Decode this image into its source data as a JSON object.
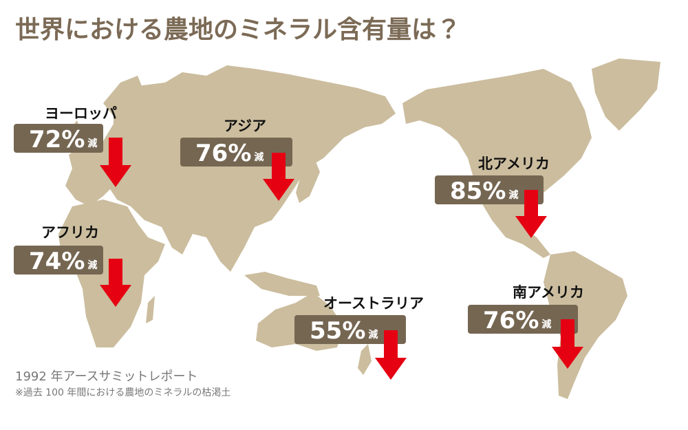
{
  "header": {
    "title": "世界における農地のミネラル含有量は？"
  },
  "regions": [
    {
      "name": "ヨーロッパ",
      "change": "72%",
      "unit": "減"
    },
    {
      "name": "アジア",
      "change": "76%",
      "unit": "減"
    },
    {
      "name": "北アメリカ",
      "change": "85%",
      "unit": "減"
    },
    {
      "name": "アフリカ",
      "change": "74%",
      "unit": "減"
    },
    {
      "name": "オーストラリア",
      "change": "55%",
      "unit": "減"
    },
    {
      "name": "南アメリカ",
      "change": "76%",
      "unit": "減"
    }
  ],
  "source": {
    "line1": "1992 年アースサミットレポート",
    "line2": "※過去 100 年間における農地のミネラルの枯渇土"
  }
}
